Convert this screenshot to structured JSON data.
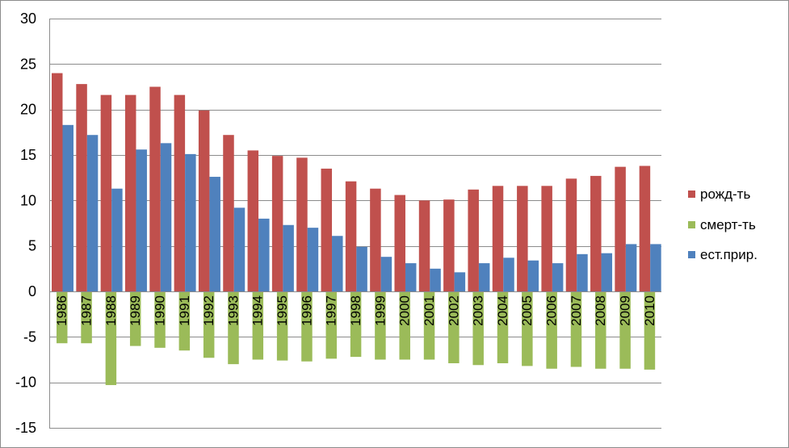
{
  "chart_data": {
    "type": "bar",
    "title": "",
    "xlabel": "",
    "ylabel": "",
    "ylim": [
      -15,
      30
    ],
    "y_ticks": [
      30,
      25,
      20,
      15,
      10,
      5,
      0,
      -5,
      -10,
      -15
    ],
    "grid": true,
    "legend_position": "right",
    "categories": [
      "1986",
      "1987",
      "1988",
      "1989",
      "1990",
      "1991",
      "1992",
      "1993",
      "1994",
      "1995",
      "1996",
      "1997",
      "1998",
      "1999",
      "2000",
      "2001",
      "2002",
      "2003",
      "2004",
      "2005",
      "2006",
      "2007",
      "2008",
      "2009",
      "2010"
    ],
    "series": [
      {
        "name": "рожд-ть",
        "color": "#c0504d",
        "values": [
          24.0,
          22.8,
          21.6,
          21.6,
          22.5,
          21.6,
          19.9,
          17.2,
          15.5,
          14.9,
          14.7,
          13.5,
          12.1,
          11.3,
          10.6,
          10.0,
          10.1,
          11.2,
          11.6,
          11.6,
          11.6,
          12.4,
          12.7,
          13.7,
          13.8
        ]
      },
      {
        "name": "смерт-ть",
        "color": "#9bbb59",
        "values": [
          -5.7,
          -5.7,
          -10.3,
          -6.0,
          -6.2,
          -6.5,
          -7.3,
          -8.0,
          -7.5,
          -7.6,
          -7.7,
          -7.4,
          -7.2,
          -7.5,
          -7.5,
          -7.5,
          -7.9,
          -8.1,
          -7.9,
          -8.2,
          -8.5,
          -8.3,
          -8.5,
          -8.5,
          -8.6
        ]
      },
      {
        "name": "ест.прир.",
        "color": "#4f81bd",
        "values": [
          18.3,
          17.2,
          11.3,
          15.6,
          16.3,
          15.1,
          12.6,
          9.2,
          8.0,
          7.3,
          7.0,
          6.1,
          4.9,
          3.8,
          3.1,
          2.5,
          2.1,
          3.1,
          3.7,
          3.4,
          3.1,
          4.1,
          4.2,
          5.2,
          5.2
        ]
      }
    ]
  }
}
